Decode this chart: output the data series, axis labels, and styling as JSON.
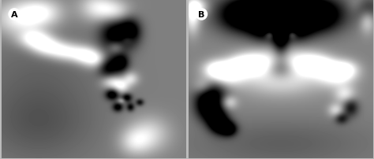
{
  "figsize": [
    4.74,
    2.03
  ],
  "dpi": 100,
  "label_A": "A",
  "label_B": "B",
  "label_fontsize": 8,
  "label_circle_color": "#ffffff",
  "label_text_color": "#000000",
  "outer_border_color": "#bbbbbb",
  "wspace": 0.018
}
